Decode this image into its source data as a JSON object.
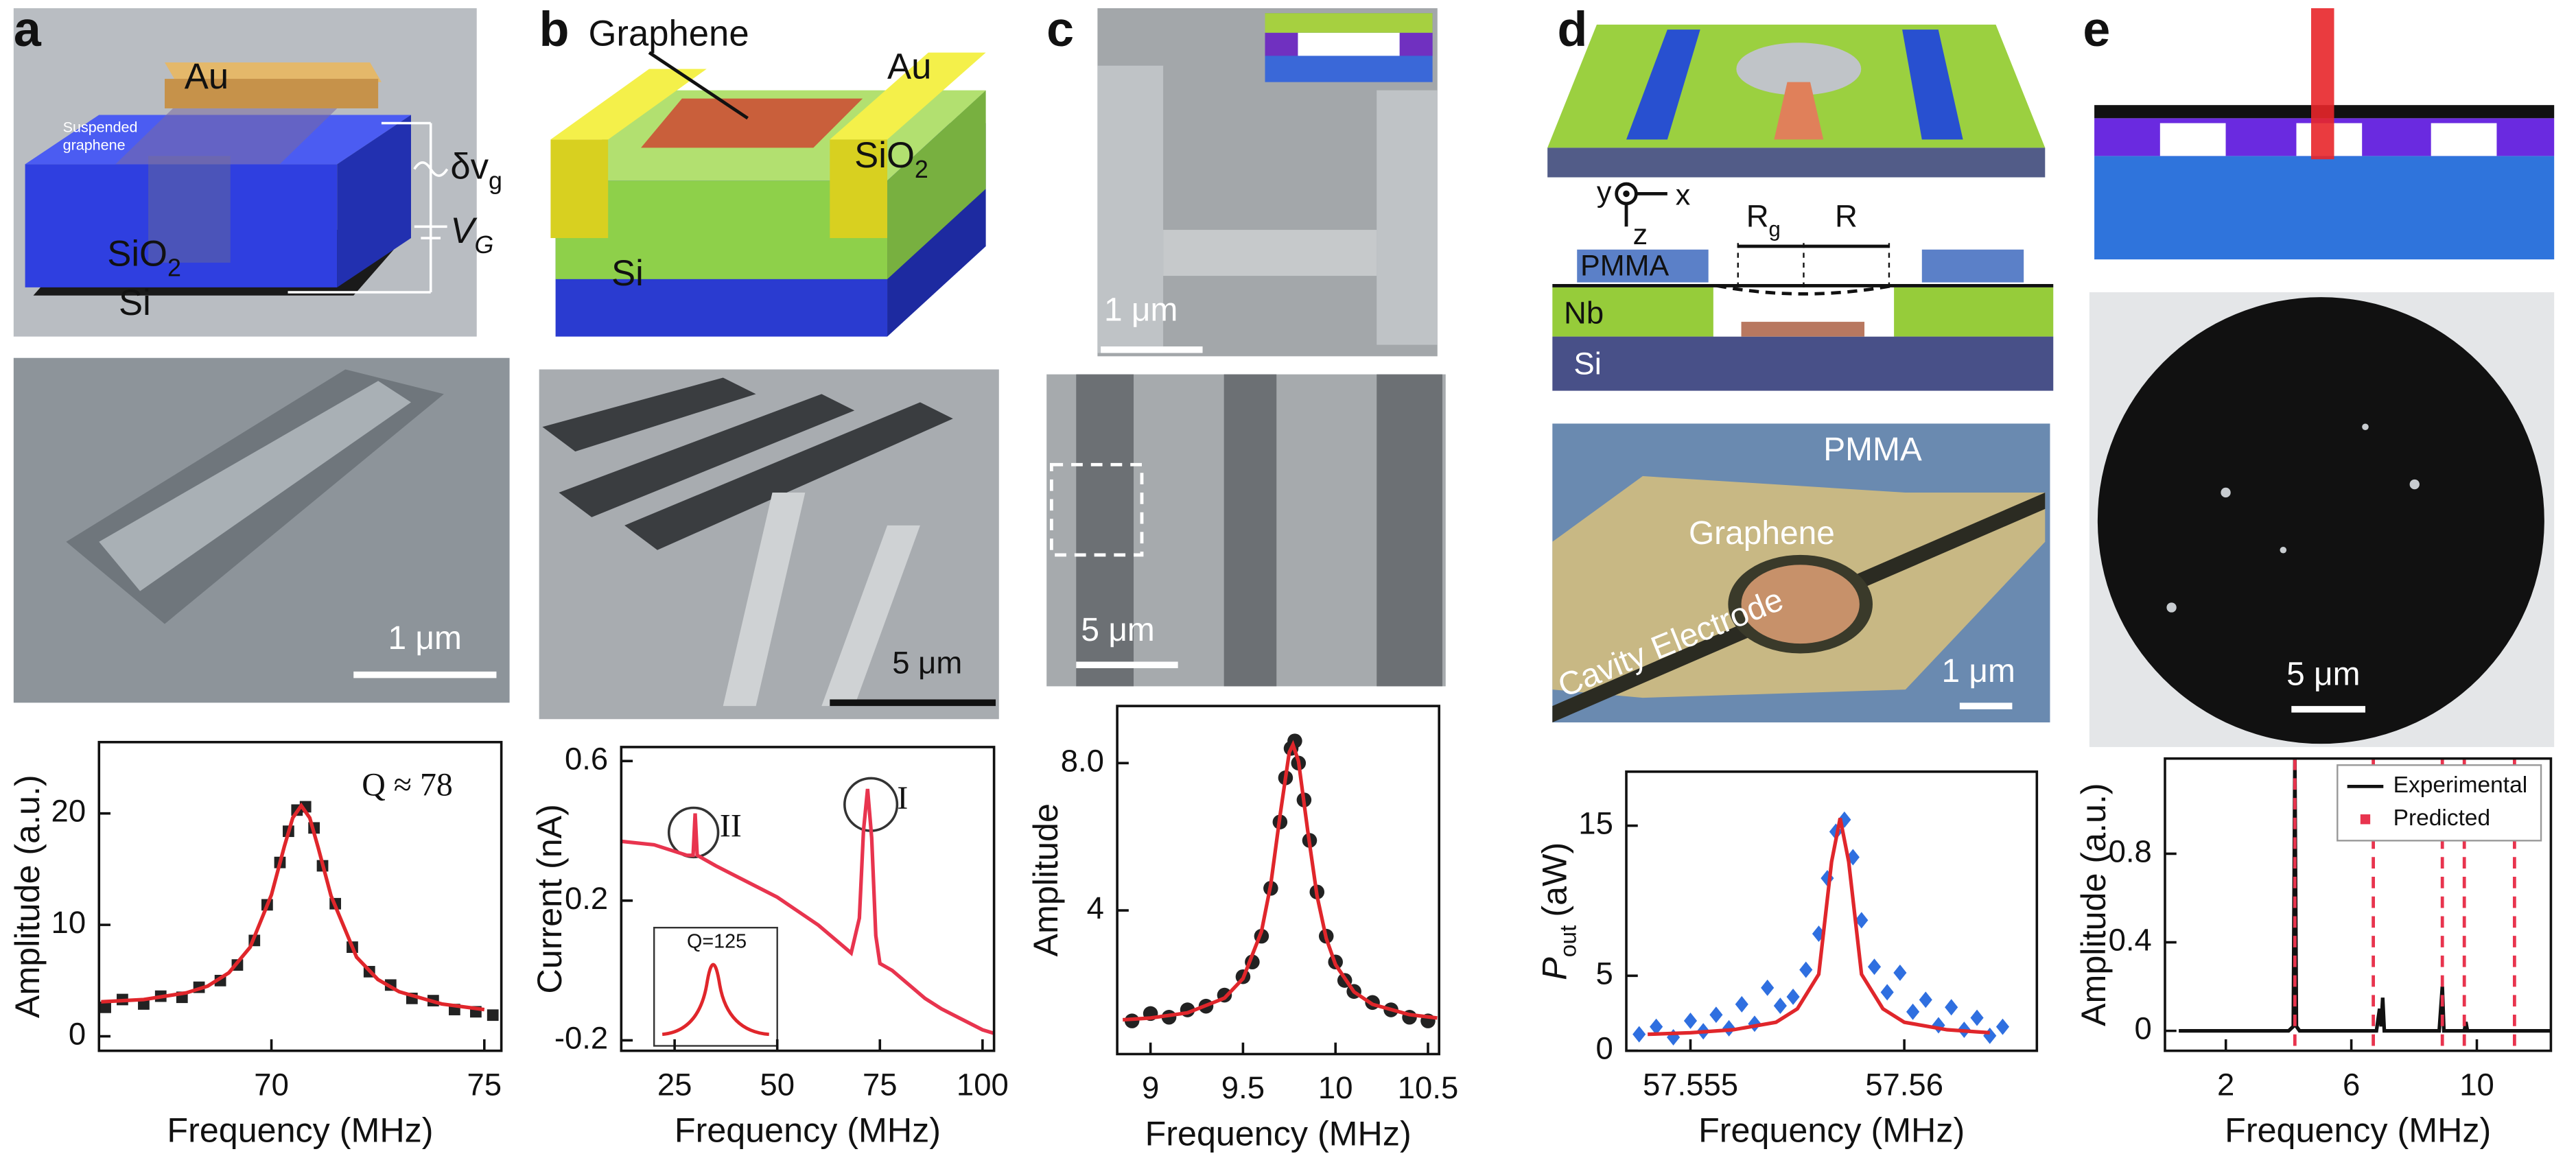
{
  "figure": {
    "panel_labels": [
      "a",
      "b",
      "c",
      "d",
      "e"
    ],
    "a": {
      "au": "Au",
      "suspended": [
        "Suspended",
        "graphene"
      ],
      "sio2": {
        "main": "SiO",
        "sub": "2"
      },
      "si": "Si",
      "ac": {
        "main": "δv",
        "sub": "g"
      },
      "dc": {
        "main": "V",
        "sub": "G"
      },
      "scale": "1 μm"
    },
    "b": {
      "graphene": "Graphene",
      "au": "Au",
      "sio2": {
        "main": "SiO",
        "sub": "2"
      },
      "si": "Si",
      "scale": "5 μm"
    },
    "c": {
      "scale_top": "1 μm",
      "scale_bottom": "5 μm"
    },
    "d": {
      "axis_y": "y",
      "axis_x": "x",
      "axis_z": "z",
      "rg": {
        "main": "R",
        "sub": "g"
      },
      "r": "R",
      "pmma": "PMMA",
      "nb": "Nb",
      "si": "Si",
      "pmma_image": "PMMA",
      "graphene": "Graphene",
      "cavity": "Cavity Electrode",
      "scale": "1 μm"
    },
    "e": {
      "scale": "5 μm"
    }
  },
  "chart_data": [
    {
      "type": "line",
      "x_label": "Frequency (MHz)",
      "y_label": "Amplitude (a.u.)",
      "xlim": [
        65.95,
        75.4
      ],
      "xticks": [
        70,
        75
      ],
      "ylim": [
        -1.3,
        26.4
      ],
      "yticks": [
        0,
        10,
        20
      ],
      "annotations": [
        "Q ≈ 78"
      ],
      "series": [
        {
          "style": "markers",
          "marker": "square",
          "color": "#222222",
          "x": [
            66.1,
            66.5,
            67.0,
            67.4,
            67.9,
            68.3,
            68.8,
            69.2,
            69.6,
            69.9,
            70.2,
            70.4,
            70.6,
            70.8,
            71.0,
            71.2,
            71.5,
            71.9,
            72.3,
            72.8,
            73.3,
            73.8,
            74.3,
            74.8,
            75.2
          ],
          "values": [
            2.6,
            3.3,
            2.9,
            3.6,
            3.5,
            4.4,
            5.0,
            6.4,
            8.6,
            11.8,
            15.6,
            18.4,
            20.3,
            20.6,
            18.7,
            15.3,
            11.9,
            8.0,
            5.8,
            4.6,
            3.4,
            3.2,
            2.4,
            2.2,
            1.9
          ]
        },
        {
          "style": "line",
          "color": "#e0262b",
          "x": [
            66,
            67,
            68,
            68.5,
            69,
            69.5,
            70,
            70.3,
            70.5,
            70.7,
            70.9,
            71.1,
            71.4,
            72,
            72.5,
            73,
            74,
            75
          ],
          "values": [
            3.1,
            3.3,
            3.9,
            4.5,
            5.7,
            8.0,
            12.7,
            17.0,
            19.6,
            20.7,
            19.6,
            16.9,
            12.6,
            7.1,
            5.1,
            4.0,
            2.9,
            2.4
          ]
        }
      ]
    },
    {
      "type": "line",
      "x_label": "Frequency (MHz)",
      "y_label": "Current (nA)",
      "xlim": [
        12,
        102.8
      ],
      "xticks": [
        25,
        50,
        75,
        100
      ],
      "ylim": [
        -0.23,
        0.64
      ],
      "yticks": [
        -0.2,
        0.2,
        0.6
      ],
      "annotations": [
        "II",
        "I",
        "Q=125"
      ],
      "series": [
        {
          "style": "line",
          "color": "#e8344e",
          "x": [
            12,
            20,
            28,
            29.5,
            30,
            30.5,
            35,
            40,
            45,
            50,
            55,
            60,
            65,
            68,
            70,
            71,
            72,
            73,
            74,
            75,
            78,
            82,
            86,
            90,
            95,
            100,
            102.8
          ],
          "values": [
            0.37,
            0.36,
            0.33,
            0.33,
            0.45,
            0.33,
            0.3,
            0.27,
            0.24,
            0.21,
            0.17,
            0.13,
            0.08,
            0.05,
            0.15,
            0.4,
            0.52,
            0.38,
            0.1,
            0.02,
            0.0,
            -0.04,
            -0.08,
            -0.11,
            -0.14,
            -0.17,
            -0.18
          ]
        }
      ]
    },
    {
      "type": "line",
      "x_label": "Frequency (MHz)",
      "y_label": "Amplitude",
      "xlim": [
        8.82,
        10.56
      ],
      "xticks": [
        9,
        9.5,
        10,
        10.5
      ],
      "ylim": [
        0.1,
        9.55
      ],
      "yticks": [
        4,
        {
          "value": 8,
          "label": "8.0"
        }
      ],
      "series": [
        {
          "style": "markers",
          "marker": "circle",
          "color": "#222222",
          "x": [
            8.9,
            9.0,
            9.1,
            9.2,
            9.3,
            9.4,
            9.5,
            9.55,
            9.6,
            9.65,
            9.7,
            9.73,
            9.76,
            9.78,
            9.8,
            9.83,
            9.86,
            9.9,
            9.95,
            10.0,
            10.05,
            10.1,
            10.2,
            10.3,
            10.4,
            10.5
          ],
          "values": [
            1.0,
            1.2,
            1.1,
            1.3,
            1.4,
            1.7,
            2.2,
            2.6,
            3.3,
            4.6,
            6.4,
            7.6,
            8.4,
            8.6,
            8.0,
            7.0,
            5.9,
            4.5,
            3.3,
            2.6,
            2.1,
            1.8,
            1.5,
            1.3,
            1.1,
            1.0
          ]
        },
        {
          "style": "line",
          "color": "#e0262b",
          "x": [
            8.85,
            9.0,
            9.2,
            9.4,
            9.5,
            9.6,
            9.65,
            9.7,
            9.75,
            9.77,
            9.8,
            9.85,
            9.9,
            9.95,
            10.0,
            10.1,
            10.2,
            10.4,
            10.55
          ],
          "values": [
            1.03,
            1.08,
            1.22,
            1.62,
            2.15,
            3.43,
            4.7,
            6.57,
            8.29,
            8.5,
            8.05,
            6.16,
            4.4,
            3.24,
            2.53,
            1.79,
            1.45,
            1.17,
            1.08
          ]
        }
      ]
    },
    {
      "type": "line",
      "x_label": "Frequency (MHz)",
      "y_label": {
        "main": "P",
        "sub": "out",
        "unit": "(aW)"
      },
      "xlim": [
        57.5535,
        57.5631
      ],
      "xticks": [
        57.555,
        57.56
      ],
      "ylim": [
        0,
        18.6
      ],
      "yticks": [
        0,
        5,
        15
      ],
      "series": [
        {
          "style": "markers",
          "marker": "diamond",
          "color": "#2f6fe0",
          "x": [
            57.5538,
            57.5542,
            57.5546,
            57.555,
            57.5553,
            57.5556,
            57.5559,
            57.5562,
            57.5565,
            57.5568,
            57.5571,
            57.5574,
            57.5577,
            57.558,
            57.5582,
            57.5584,
            57.5586,
            57.5588,
            57.559,
            57.5593,
            57.5596,
            57.5599,
            57.5602,
            57.5605,
            57.5608,
            57.5611,
            57.5614,
            57.5617,
            57.562,
            57.5623
          ],
          "values": [
            1.1,
            1.6,
            0.9,
            2.0,
            1.3,
            2.4,
            1.5,
            3.1,
            1.8,
            4.2,
            3.0,
            3.6,
            5.4,
            7.8,
            11.5,
            14.6,
            15.4,
            12.9,
            8.7,
            5.6,
            3.9,
            5.2,
            2.6,
            3.4,
            1.7,
            2.9,
            1.4,
            2.2,
            1.0,
            1.6
          ]
        },
        {
          "style": "line",
          "color": "#e0262b",
          "x": [
            57.554,
            57.555,
            57.556,
            57.557,
            57.5575,
            57.558,
            57.5583,
            57.5585,
            57.5587,
            57.559,
            57.5595,
            57.56,
            57.561,
            57.562
          ],
          "values": [
            1.1,
            1.2,
            1.4,
            1.9,
            2.8,
            5.1,
            12.6,
            15.5,
            12.6,
            5.1,
            2.8,
            1.9,
            1.4,
            1.2
          ]
        }
      ]
    },
    {
      "type": "line",
      "x_label": "Frequency (MHz)",
      "y_label": "Amplitude (a.u.)",
      "xlim": [
        0.06,
        12.36
      ],
      "xticks": [
        2,
        6,
        10
      ],
      "ylim": [
        -0.09,
        1.23
      ],
      "yticks": [
        0,
        0.4,
        0.8
      ],
      "legend": "upper right",
      "series": [
        {
          "name": "Experimental",
          "style": "line",
          "color": "#111111",
          "x": [
            0.5,
            4.0,
            4.15,
            4.2,
            4.25,
            4.35,
            6.8,
            6.9,
            6.95,
            7.0,
            7.05,
            8.8,
            8.9,
            8.95,
            9.6,
            9.65,
            9.7,
            12.36
          ],
          "values": [
            0,
            0,
            0.02,
            1.23,
            0.02,
            0,
            0,
            0.1,
            0.02,
            0.15,
            0,
            0,
            0.2,
            0,
            0,
            0.04,
            0,
            0
          ]
        },
        {
          "name": "Predicted",
          "style": "vlines",
          "color": "#e8344e",
          "x": [
            4.2,
            6.7,
            8.9,
            9.6,
            11.2
          ]
        }
      ]
    }
  ]
}
